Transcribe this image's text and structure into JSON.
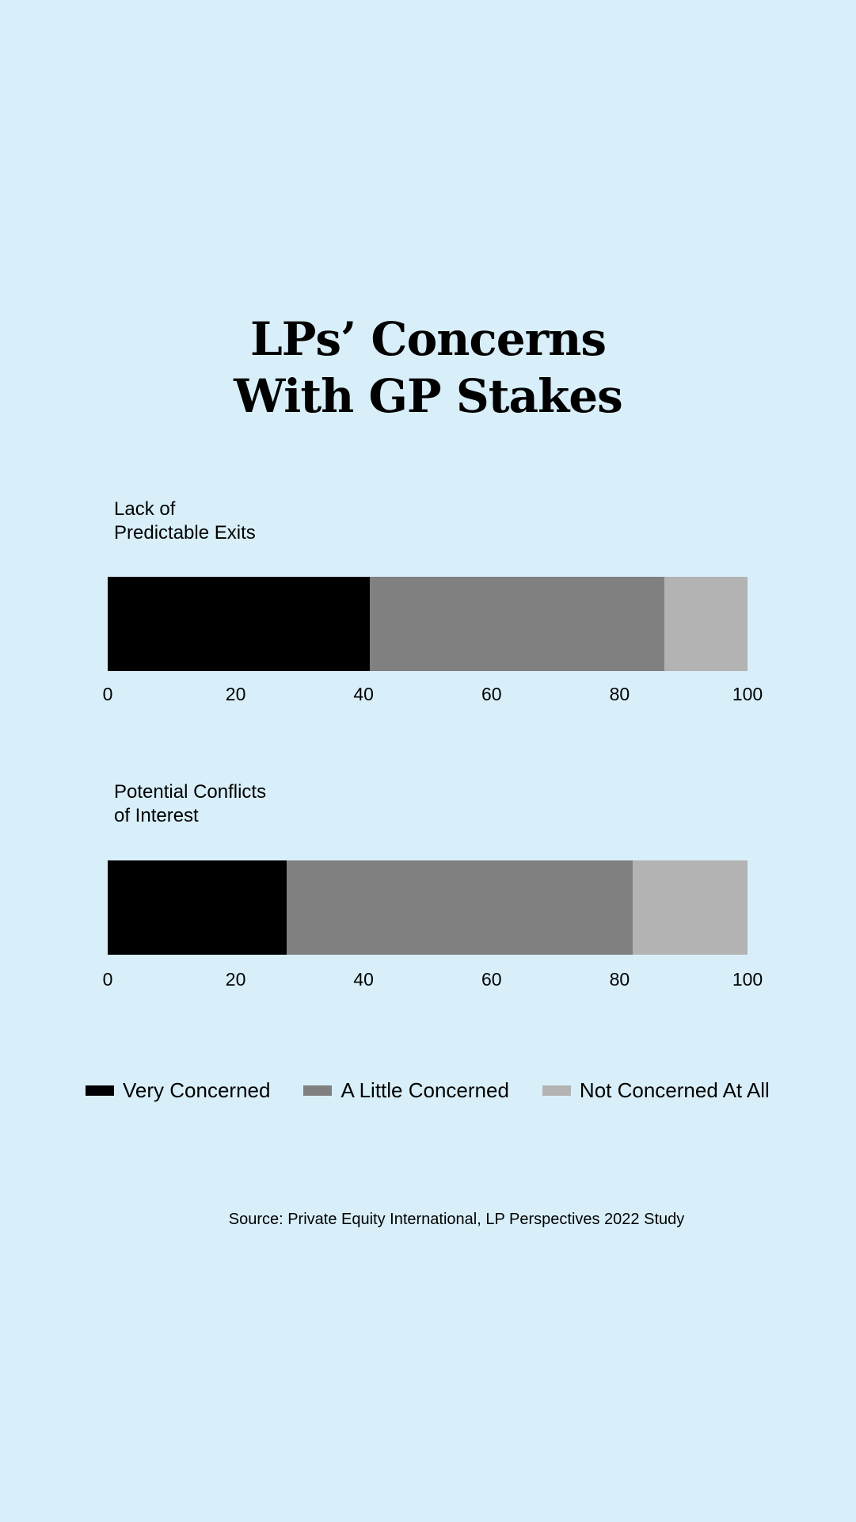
{
  "title": {
    "line1": "LPs’ Concerns",
    "line2": "With GP Stakes"
  },
  "colors": {
    "background": "#d8eff9",
    "very_concerned": "#000000",
    "a_little_concerned": "#808080",
    "not_concerned": "#b3b3b3"
  },
  "panels": [
    {
      "label_line1": "Lack of",
      "label_line2": "Predictable Exits",
      "ticks": [
        "0",
        "20",
        "40",
        "60",
        "80",
        "100"
      ]
    },
    {
      "label_line1": "Potential Conflicts",
      "label_line2": "of Interest",
      "ticks": [
        "0",
        "20",
        "40",
        "60",
        "80",
        "100"
      ]
    }
  ],
  "legend": {
    "items": [
      {
        "label": "Very Concerned",
        "color": "#000000"
      },
      {
        "label": "A Little Concerned",
        "color": "#808080"
      },
      {
        "label": "Not Concerned At All",
        "color": "#b3b3b3"
      }
    ]
  },
  "source": "Source: Private Equity International, LP Perspectives 2022 Study",
  "chart_data": {
    "type": "bar",
    "orientation": "horizontal",
    "stacked": true,
    "title": "LPs’ Concerns With GP Stakes",
    "categories": [
      "Lack of Predictable Exits",
      "Potential Conflicts of Interest"
    ],
    "series": [
      {
        "name": "Very Concerned",
        "color": "#000000",
        "values": [
          41,
          28
        ]
      },
      {
        "name": "A Little Concerned",
        "color": "#808080",
        "values": [
          46,
          54
        ]
      },
      {
        "name": "Not Concerned At All",
        "color": "#b3b3b3",
        "values": [
          13,
          18
        ]
      }
    ],
    "xlabel": "",
    "ylabel": "",
    "xlim": [
      0,
      100
    ],
    "xticks": [
      0,
      20,
      40,
      60,
      80,
      100
    ],
    "grid": false,
    "legend_position": "bottom",
    "source": "Source: Private Equity International, LP Perspectives 2022 Study"
  }
}
